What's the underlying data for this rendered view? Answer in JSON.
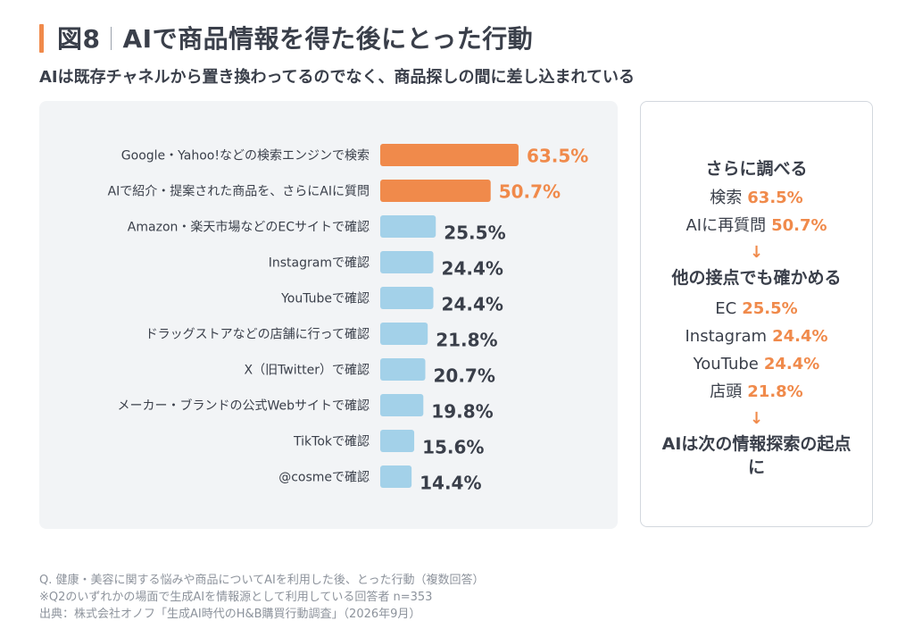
{
  "header": {
    "figure_label": "図8",
    "title": "AIで商品情報を得た後にとった行動",
    "subtitle": "AIは既存チャネルから置き換わってるのでなく、商品探しの間に差し込まれている"
  },
  "chart_data": {
    "type": "bar",
    "orientation": "horizontal",
    "title": "",
    "xlabel": "",
    "ylabel": "",
    "xlim": [
      0,
      100
    ],
    "grid": false,
    "unit": "%",
    "categories": [
      "Google・Yahoo!などの検索エンジンで検索",
      "AIで紹介・提案された商品を、さらにAIに質問",
      "Amazon・楽天市場などのECサイトで確認",
      "Instagramで確認",
      "YouTubeで確認",
      "ドラッグストアなどの店舗に行って確認",
      "X（旧Twitter）で確認",
      "メーカー・ブランドの公式Webサイトで確認",
      "TikTokで確認",
      "@cosmeで確認"
    ],
    "values": [
      63.5,
      50.7,
      25.5,
      24.4,
      24.4,
      21.8,
      20.7,
      19.8,
      15.6,
      14.4
    ],
    "value_labels": [
      "63.5%",
      "50.7%",
      "25.5%",
      "24.4%",
      "24.4%",
      "21.8%",
      "20.7%",
      "19.8%",
      "15.6%",
      "14.4%"
    ],
    "highlight_count": 2,
    "colors": {
      "highlight": "#f08a4b",
      "normal": "#a3d1e9",
      "highlight_label": "#f08a4b",
      "normal_label": "#3a3f4a"
    }
  },
  "side_panel": {
    "section1_title": "さらに調べる",
    "section1_items": [
      {
        "label": "検索",
        "value": "63.5%"
      },
      {
        "label": "AIに再質問",
        "value": "50.7%"
      }
    ],
    "arrow1": "↓",
    "section2_title": "他の接点でも確かめる",
    "section2_items": [
      {
        "label": "EC",
        "value": "25.5%"
      },
      {
        "label": "Instagram",
        "value": "24.4%"
      },
      {
        "label": "YouTube",
        "value": "24.4%"
      },
      {
        "label": "店頭",
        "value": "21.8%"
      }
    ],
    "arrow2": "↓",
    "conclusion": "AIは次の情報探索の起点に"
  },
  "footer": {
    "question": "Q. 健康・美容に関する悩みや商品についてAIを利用した後、とった行動（複数回答）",
    "note": "※Q2のいずれかの場面で生成AIを情報源として利用している回答者 n=353",
    "source": "出典：株式会社オノフ「生成AI時代のH&B購買行動調査」（2026年9月）"
  }
}
